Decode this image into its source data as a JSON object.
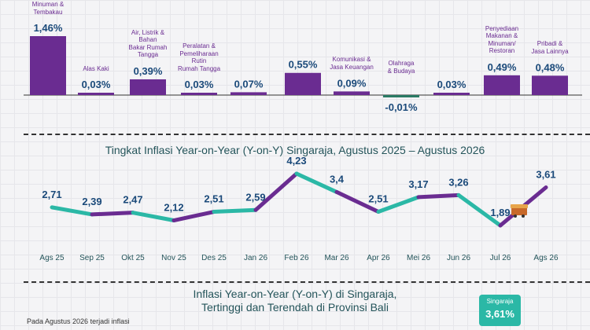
{
  "colors": {
    "purple": "#6a2c91",
    "teal": "#2bb8a6",
    "negative": "#2a7a64",
    "value_text": "#1b4a7a",
    "title_text": "#24545a"
  },
  "chart_data": [
    {
      "type": "bar",
      "categories": [
        [
          "Minuman &",
          "Tembakau"
        ],
        [
          "Alas Kaki"
        ],
        [
          "Air, Listrik &",
          "Bahan",
          "Bakar Rumah",
          "Tangga"
        ],
        [
          "Peralatan &",
          "Pemeliharaan",
          "Rutin",
          "Rumah Tangga"
        ],
        [
          ""
        ],
        [
          ""
        ],
        [
          "Komunikasi &",
          "Jasa Keuangan"
        ],
        [
          "Olahraga",
          "& Budaya"
        ],
        [
          ""
        ],
        [
          "Penyediaan",
          "Makanan &",
          "Minuman/",
          "Restoran"
        ],
        [
          "Pribadi &",
          "Jasa Lainnya"
        ]
      ],
      "values": [
        1.46,
        0.03,
        0.39,
        0.03,
        0.07,
        0.55,
        0.09,
        -0.01,
        0.03,
        0.49,
        0.48
      ],
      "value_labels": [
        "1,46%",
        "0,03%",
        "0,39%",
        "0,03%",
        "0,07%",
        "0,55%",
        "0,09%",
        "-0,01%",
        "0,03%",
        "0,49%",
        "0,48%"
      ]
    },
    {
      "type": "line",
      "title": "Tingkat Inflasi Year-on-Year (Y-on-Y) Singaraja, Agustus 2025 – Agustus 2026",
      "categories": [
        "Ags 25",
        "Sep 25",
        "Okt 25",
        "Nov 25",
        "Des 25",
        "Jan 26",
        "Feb 26",
        "Mar 26",
        "Apr 26",
        "Mei 26",
        "Jun 26",
        "Jul 26",
        "Ags 26"
      ],
      "values": [
        2.71,
        2.39,
        2.47,
        2.12,
        2.51,
        2.59,
        4.23,
        3.4,
        2.51,
        3.17,
        3.26,
        1.89,
        3.61
      ],
      "value_labels": [
        "2,71",
        "2,39",
        "2,47",
        "2,12",
        "2,51",
        "2,59",
        "4,23",
        "3,4",
        "2,51",
        "3,17",
        "3,26",
        "1,89",
        "3,61"
      ]
    }
  ],
  "section3": {
    "title_line1": "Inflasi Year-on-Year (Y-on-Y) di Singaraja,",
    "title_line2": "Tertinggi dan Terendah di Provinsi Bali",
    "callout_name": "Singaraja",
    "callout_value": "3,61%",
    "note": "Pada Agustus 2026 terjadi inflasi"
  }
}
